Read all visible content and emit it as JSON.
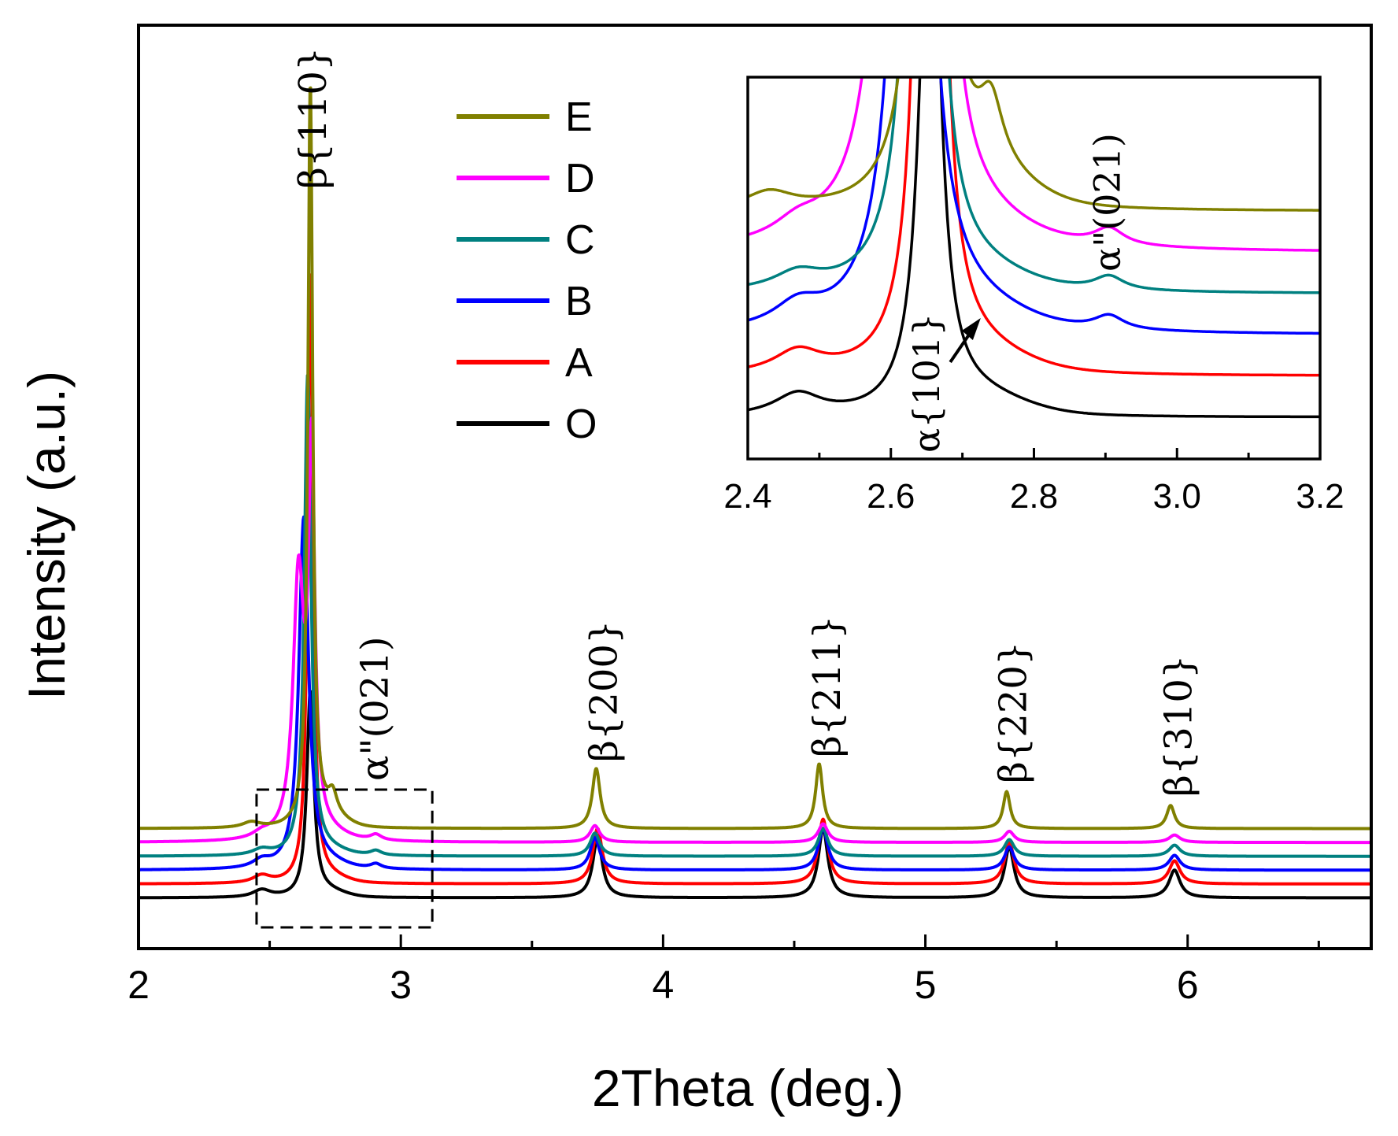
{
  "chart_data": {
    "type": "line",
    "title": "",
    "xlabel": "2Theta (deg.)",
    "ylabel": "Intensity (a.u.)",
    "xlim": [
      2.0,
      6.7
    ],
    "xticks": [
      2,
      3,
      4,
      5,
      6
    ],
    "xtick_labels": [
      "2",
      "3",
      "4",
      "5",
      "6"
    ],
    "ylim": [
      0,
      100
    ],
    "grid": false,
    "legend_position": "top-center",
    "series": [
      {
        "name": "O",
        "color": "#000000",
        "baseline": 5.5,
        "shoulder": 0.6,
        "peaks": [
          [
            2.47,
            0.8,
            0.04
          ],
          [
            2.655,
            22,
            0.016
          ],
          [
            3.75,
            6.5,
            0.022
          ],
          [
            4.61,
            7.5,
            0.022
          ],
          [
            5.32,
            5.5,
            0.022
          ],
          [
            5.95,
            3.0,
            0.025
          ]
        ]
      },
      {
        "name": "A",
        "color": "#ff0000",
        "baseline": 7.0,
        "shoulder": 0.6,
        "peaks": [
          [
            2.47,
            0.8,
            0.04
          ],
          [
            2.655,
            66,
            0.012
          ],
          [
            3.75,
            6.0,
            0.022
          ],
          [
            4.61,
            7.0,
            0.022
          ],
          [
            5.32,
            4.5,
            0.022
          ],
          [
            5.95,
            2.5,
            0.025
          ]
        ]
      },
      {
        "name": "B",
        "color": "#0000ff",
        "baseline": 8.5,
        "shoulder": 0.5,
        "peaks": [
          [
            2.47,
            0.8,
            0.04
          ],
          [
            2.63,
            38,
            0.022
          ],
          [
            3.74,
            3.5,
            0.022
          ],
          [
            4.61,
            4.5,
            0.022
          ],
          [
            5.32,
            2.5,
            0.022
          ],
          [
            5.95,
            1.6,
            0.025
          ],
          [
            2.905,
            0.5,
            0.025
          ]
        ]
      },
      {
        "name": "C",
        "color": "#008080",
        "baseline": 10.0,
        "shoulder": 0.5,
        "peaks": [
          [
            2.47,
            0.6,
            0.04
          ],
          [
            2.645,
            52,
            0.015
          ],
          [
            3.74,
            2.5,
            0.022
          ],
          [
            4.61,
            3.0,
            0.022
          ],
          [
            5.32,
            1.8,
            0.022
          ],
          [
            5.95,
            1.2,
            0.025
          ],
          [
            2.905,
            0.5,
            0.025
          ]
        ]
      },
      {
        "name": "D",
        "color": "#ff00ff",
        "baseline": 11.5,
        "shoulder": 0.5,
        "peaks": [
          [
            2.47,
            0.6,
            0.04
          ],
          [
            2.61,
            28,
            0.025
          ],
          [
            2.66,
            40,
            0.014
          ],
          [
            3.74,
            1.8,
            0.022
          ],
          [
            4.61,
            2.0,
            0.022
          ],
          [
            5.32,
            1.2,
            0.022
          ],
          [
            5.95,
            0.8,
            0.025
          ],
          [
            2.905,
            0.6,
            0.025
          ]
        ]
      },
      {
        "name": "E",
        "color": "#808000",
        "baseline": 13.0,
        "shoulder": 1.2,
        "peaks": [
          [
            2.43,
            0.6,
            0.04
          ],
          [
            2.655,
            80,
            0.011
          ],
          [
            2.74,
            2.2,
            0.02
          ],
          [
            3.745,
            6.5,
            0.018
          ],
          [
            4.595,
            7.0,
            0.016
          ],
          [
            5.31,
            4.0,
            0.016
          ],
          [
            5.935,
            2.5,
            0.018
          ]
        ]
      }
    ],
    "peak_labels": [
      {
        "text": "β{110}",
        "x": 2.66
      },
      {
        "text": "α\"(021)",
        "x": 2.95
      },
      {
        "text": "β{200}",
        "x": 3.77
      },
      {
        "text": "β{211}",
        "x": 4.62
      },
      {
        "text": "β{220}",
        "x": 5.33
      },
      {
        "text": "β{310}",
        "x": 5.96
      }
    ],
    "inset": {
      "xlim": [
        2.4,
        3.2
      ],
      "xticks": [
        2.4,
        2.6,
        2.8,
        3.0,
        3.2
      ],
      "xtick_labels": [
        "2.4",
        "2.6",
        "2.8",
        "3.0",
        "3.2"
      ],
      "ylim": [
        0,
        100
      ],
      "region_x": [
        2.45,
        3.12
      ],
      "labels": [
        {
          "text": "α\"(021)",
          "x": 2.9
        },
        {
          "text": "α{101}",
          "x": 2.65
        }
      ],
      "arrow_x": 2.73
    }
  }
}
